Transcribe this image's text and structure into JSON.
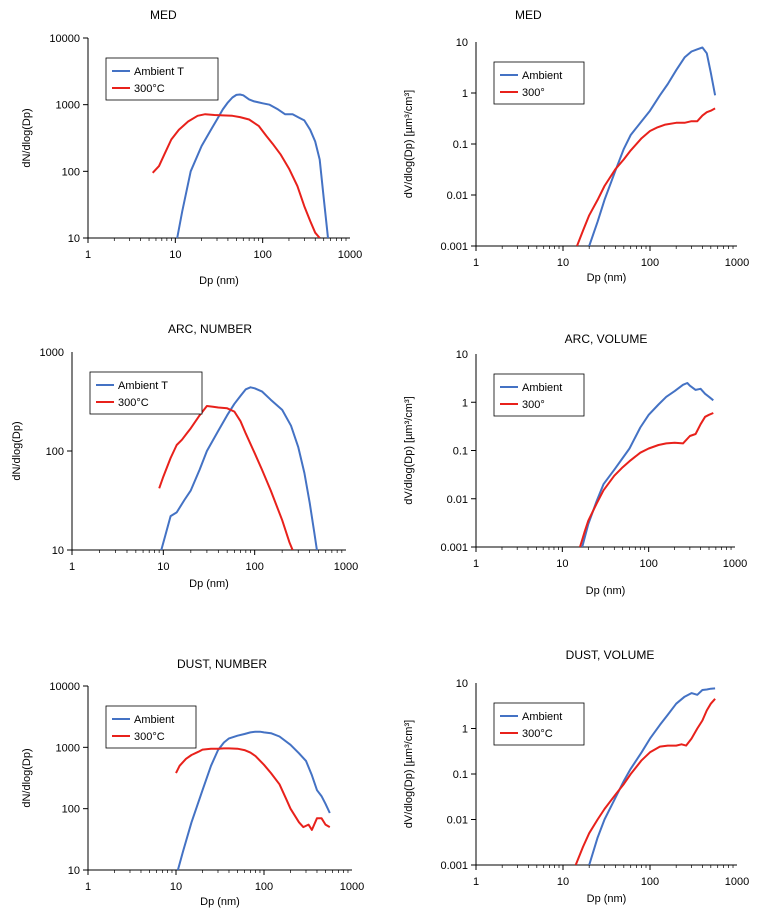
{
  "chart_data": [
    {
      "type": "line",
      "title": "MED",
      "xlabel": "Dp (nm)",
      "ylabel": "dN/dlog(Dp)",
      "x_scale": "log",
      "y_scale": "log",
      "xlim": [
        1,
        1000
      ],
      "ylim": [
        10,
        10000
      ],
      "x_ticks": [
        "1",
        "10",
        "100",
        "1000"
      ],
      "y_ticks": [
        "10",
        "100",
        "1000",
        "10000"
      ],
      "legend": "top-left",
      "series": [
        {
          "name": "Ambient T",
          "color": "#4472C4",
          "x": [
            10.5,
            12,
            15,
            20,
            25,
            30,
            35,
            40,
            45,
            50,
            55,
            60,
            70,
            80,
            90,
            100,
            120,
            150,
            180,
            220,
            260,
            300,
            350,
            400,
            450,
            500,
            560
          ],
          "y": [
            10,
            25,
            100,
            240,
            400,
            600,
            850,
            1080,
            1280,
            1400,
            1420,
            1380,
            1200,
            1120,
            1080,
            1050,
            1000,
            850,
            720,
            720,
            640,
            580,
            420,
            280,
            150,
            40,
            10
          ]
        },
        {
          "name": "300°C",
          "color": "#E8211B",
          "x": [
            5.5,
            6.5,
            7.5,
            9,
            11,
            14,
            18,
            22,
            28,
            35,
            45,
            55,
            70,
            90,
            110,
            130,
            160,
            200,
            250,
            300,
            350,
            400,
            450
          ],
          "y": [
            95,
            120,
            180,
            300,
            420,
            560,
            680,
            720,
            700,
            690,
            680,
            650,
            600,
            480,
            340,
            260,
            180,
            110,
            60,
            30,
            18,
            12,
            10
          ]
        }
      ]
    },
    {
      "type": "line",
      "title": "MED",
      "xlabel": "Dp (nm)",
      "ylabel": "dV/dlog(Dp) [µm³/cm³]",
      "x_scale": "log",
      "y_scale": "log",
      "xlim": [
        1,
        1000
      ],
      "ylim": [
        0.001,
        10
      ],
      "x_ticks": [
        "1",
        "10",
        "100",
        "1000"
      ],
      "y_ticks": [
        "0.001",
        "0.01",
        "0.1",
        "1",
        "10"
      ],
      "legend": "top-left",
      "series": [
        {
          "name": "Ambient",
          "color": "#4472C4",
          "x": [
            20,
            25,
            30,
            40,
            50,
            60,
            80,
            100,
            130,
            160,
            200,
            250,
            300,
            350,
            400,
            450,
            500,
            560
          ],
          "y": [
            0.001,
            0.003,
            0.008,
            0.03,
            0.08,
            0.15,
            0.28,
            0.45,
            0.9,
            1.5,
            2.8,
            5.0,
            6.5,
            7.2,
            7.8,
            6.0,
            2.5,
            0.9
          ]
        },
        {
          "name": "300°",
          "color": "#E8211B",
          "x": [
            14.5,
            17,
            20,
            25,
            30,
            40,
            50,
            60,
            80,
            100,
            120,
            150,
            200,
            250,
            300,
            350,
            400,
            450,
            500,
            560
          ],
          "y": [
            0.001,
            0.002,
            0.004,
            0.008,
            0.015,
            0.032,
            0.05,
            0.075,
            0.13,
            0.18,
            0.21,
            0.24,
            0.26,
            0.26,
            0.28,
            0.28,
            0.36,
            0.42,
            0.45,
            0.5
          ]
        }
      ]
    },
    {
      "type": "line",
      "title": "ARC, NUMBER",
      "xlabel": "Dp (nm)",
      "ylabel": "dN/dlog(Dp)",
      "x_scale": "log",
      "y_scale": "log",
      "xlim": [
        1,
        1000
      ],
      "ylim": [
        10,
        1000
      ],
      "x_ticks": [
        "1",
        "10",
        "100",
        "1000"
      ],
      "y_ticks": [
        "10",
        "100",
        "1000"
      ],
      "legend": "top-left",
      "series": [
        {
          "name": "Ambient T",
          "color": "#4472C4",
          "x": [
            9.5,
            10.5,
            12,
            14,
            17,
            20,
            25,
            30,
            40,
            50,
            60,
            70,
            80,
            90,
            100,
            120,
            150,
            200,
            250,
            300,
            350,
            400,
            450,
            480
          ],
          "y": [
            10,
            14,
            22,
            24,
            32,
            40,
            65,
            100,
            160,
            230,
            300,
            360,
            420,
            440,
            430,
            400,
            330,
            260,
            180,
            110,
            60,
            30,
            15,
            10
          ]
        },
        {
          "name": "300°C",
          "color": "#E8211B",
          "x": [
            9,
            10,
            12,
            14,
            16,
            18,
            20,
            25,
            30,
            35,
            40,
            50,
            60,
            70,
            80,
            100,
            120,
            150,
            200,
            240,
            260
          ],
          "y": [
            42,
            55,
            85,
            115,
            130,
            150,
            170,
            230,
            285,
            280,
            275,
            270,
            250,
            200,
            150,
            95,
            65,
            40,
            20,
            12,
            10
          ]
        }
      ]
    },
    {
      "type": "line",
      "title": "ARC, VOLUME",
      "xlabel": "Dp (nm)",
      "ylabel": "dV/dlog(Dp) [µm³/cm³]",
      "x_scale": "log",
      "y_scale": "log",
      "xlim": [
        1,
        1000
      ],
      "ylim": [
        0.001,
        10
      ],
      "x_ticks": [
        "1",
        "10",
        "100",
        "1000"
      ],
      "y_ticks": [
        "0.001",
        "0.01",
        "0.1",
        "1",
        "10"
      ],
      "legend": "top-left",
      "series": [
        {
          "name": "Ambient",
          "color": "#4472C4",
          "x": [
            17,
            20,
            25,
            30,
            40,
            50,
            60,
            80,
            100,
            130,
            160,
            200,
            250,
            280,
            300,
            350,
            400,
            450,
            500,
            560
          ],
          "y": [
            0.001,
            0.003,
            0.009,
            0.02,
            0.04,
            0.07,
            0.11,
            0.3,
            0.55,
            0.9,
            1.3,
            1.7,
            2.3,
            2.5,
            2.2,
            1.8,
            1.9,
            1.5,
            1.3,
            1.1
          ]
        },
        {
          "name": "300°",
          "color": "#E8211B",
          "x": [
            16,
            18,
            20,
            25,
            30,
            40,
            50,
            60,
            80,
            100,
            130,
            160,
            200,
            250,
            300,
            350,
            400,
            450,
            500,
            560
          ],
          "y": [
            0.001,
            0.002,
            0.0035,
            0.008,
            0.015,
            0.03,
            0.045,
            0.06,
            0.09,
            0.11,
            0.13,
            0.14,
            0.145,
            0.14,
            0.2,
            0.22,
            0.35,
            0.5,
            0.55,
            0.6
          ]
        }
      ]
    },
    {
      "type": "line",
      "title": "DUST, NUMBER",
      "xlabel": "Dp (nm)",
      "ylabel": "dN/dlog(Dp)",
      "x_scale": "log",
      "y_scale": "log",
      "xlim": [
        1,
        1000
      ],
      "ylim": [
        10,
        10000
      ],
      "x_ticks": [
        "1",
        "10",
        "100",
        "1000"
      ],
      "y_ticks": [
        "10",
        "100",
        "1000",
        "10000"
      ],
      "legend": "top-left",
      "series": [
        {
          "name": "Ambient",
          "color": "#4472C4",
          "x": [
            10.5,
            12,
            15,
            20,
            25,
            30,
            35,
            40,
            50,
            60,
            70,
            80,
            90,
            100,
            120,
            150,
            200,
            250,
            300,
            350,
            400,
            450,
            500,
            560
          ],
          "y": [
            10,
            20,
            60,
            200,
            500,
            900,
            1200,
            1400,
            1550,
            1650,
            1750,
            1800,
            1800,
            1750,
            1700,
            1500,
            1100,
            800,
            600,
            350,
            200,
            160,
            120,
            85
          ]
        },
        {
          "name": "300°C",
          "color": "#E8211B",
          "x": [
            10,
            11,
            13,
            15,
            18,
            20,
            25,
            30,
            35,
            40,
            50,
            60,
            70,
            80,
            100,
            120,
            150,
            180,
            200,
            250,
            280,
            320,
            350,
            400,
            450,
            500,
            560
          ],
          "y": [
            380,
            500,
            650,
            750,
            850,
            920,
            950,
            950,
            960,
            960,
            950,
            900,
            820,
            720,
            520,
            380,
            250,
            140,
            100,
            60,
            50,
            55,
            45,
            70,
            70,
            55,
            50
          ]
        }
      ]
    },
    {
      "type": "line",
      "title": "DUST, VOLUME",
      "xlabel": "Dp (nm)",
      "ylabel": "dV/dlog(Dp) [µm³/cm³]",
      "x_scale": "log",
      "y_scale": "log",
      "xlim": [
        1,
        1000
      ],
      "ylim": [
        0.001,
        10
      ],
      "x_ticks": [
        "1",
        "10",
        "100",
        "1000"
      ],
      "y_ticks": [
        "0.001",
        "0.01",
        "0.1",
        "1",
        "10"
      ],
      "legend": "top-left",
      "series": [
        {
          "name": "Ambient",
          "color": "#4472C4",
          "x": [
            20,
            25,
            30,
            40,
            50,
            60,
            80,
            100,
            130,
            160,
            200,
            250,
            300,
            350,
            400,
            450,
            500,
            560
          ],
          "y": [
            0.001,
            0.004,
            0.01,
            0.03,
            0.07,
            0.13,
            0.3,
            0.6,
            1.2,
            2.0,
            3.5,
            5.0,
            6.0,
            5.5,
            7.0,
            7.2,
            7.5,
            7.6
          ]
        },
        {
          "name": "300°C",
          "color": "#E8211B",
          "x": [
            14,
            17,
            20,
            25,
            30,
            40,
            50,
            60,
            80,
            100,
            130,
            160,
            200,
            230,
            260,
            300,
            350,
            400,
            450,
            500,
            560
          ],
          "y": [
            0.001,
            0.0025,
            0.005,
            0.01,
            0.017,
            0.035,
            0.06,
            0.1,
            0.2,
            0.3,
            0.4,
            0.42,
            0.42,
            0.45,
            0.42,
            0.6,
            1.0,
            1.5,
            2.5,
            3.5,
            4.5
          ]
        }
      ]
    }
  ]
}
